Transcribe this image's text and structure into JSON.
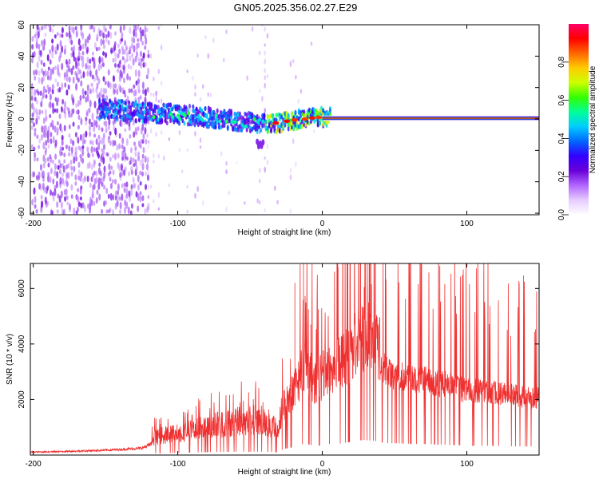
{
  "title": "GN05.2025.356.02.27.E29",
  "chart_data": [
    {
      "type": "heatmap",
      "panel": "top",
      "xlabel": "Height of straight line (km)",
      "ylabel": "Frequency (Hz)",
      "xlim": [
        -202,
        150
      ],
      "ylim": [
        -61,
        60
      ],
      "xticks": [
        -200,
        -100,
        0,
        100
      ],
      "yticks": [
        -60,
        -40,
        -20,
        0,
        20,
        40,
        60
      ],
      "colorbar": {
        "label": "Normalized spectral amplitude",
        "range": [
          0,
          1
        ],
        "ticks": [
          0.0,
          0.2,
          0.4,
          0.6,
          0.8
        ],
        "colors": [
          "#ffffff",
          "#e6ccff",
          "#b266ff",
          "#6a00d9",
          "#3300ff",
          "#0066ff",
          "#00ccff",
          "#00ff99",
          "#33ff00",
          "#ccff00",
          "#ffcc00",
          "#ff6600",
          "#ff0000",
          "#ff0066"
        ]
      },
      "ridge": [
        [
          -150,
          6
        ],
        [
          -120,
          4
        ],
        [
          -100,
          3
        ],
        [
          -80,
          1
        ],
        [
          -60,
          -1
        ],
        [
          -45,
          -3
        ],
        [
          -35,
          -3
        ],
        [
          -25,
          -1
        ],
        [
          -15,
          0
        ],
        [
          -5,
          1
        ],
        [
          0,
          1
        ],
        [
          50,
          0.5
        ],
        [
          150,
          0.5
        ]
      ]
    },
    {
      "type": "line",
      "panel": "bottom",
      "xlabel": "Height of straight line (km)",
      "ylabel": "SNR (10 * v/v)",
      "xlim": [
        -202,
        150
      ],
      "ylim": [
        0,
        6900
      ],
      "xticks": [
        -200,
        -100,
        0,
        100
      ],
      "yticks": [
        2000,
        4000,
        6000
      ],
      "color": "#f03030",
      "envelope": [
        [
          -202,
          150
        ],
        [
          -180,
          180
        ],
        [
          -160,
          220
        ],
        [
          -140,
          280
        ],
        [
          -125,
          350
        ],
        [
          -115,
          650
        ],
        [
          -100,
          800
        ],
        [
          -85,
          950
        ],
        [
          -70,
          1100
        ],
        [
          -55,
          1250
        ],
        [
          -40,
          1200
        ],
        [
          -30,
          900
        ],
        [
          -27,
          2200
        ],
        [
          -20,
          2800
        ],
        [
          -12,
          4200
        ],
        [
          -5,
          3200
        ],
        [
          5,
          3900
        ],
        [
          12,
          4100
        ],
        [
          20,
          4800
        ],
        [
          28,
          5400
        ],
        [
          35,
          5200
        ],
        [
          45,
          4300
        ],
        [
          60,
          4100
        ],
        [
          80,
          3800
        ],
        [
          100,
          3400
        ],
        [
          120,
          3300
        ],
        [
          135,
          3100
        ],
        [
          150,
          3000
        ]
      ],
      "spikes": [
        [
          -13,
          6900
        ],
        [
          -19,
          6200
        ],
        [
          34,
          6150
        ],
        [
          29,
          6050
        ],
        [
          -8,
          4700
        ]
      ]
    }
  ]
}
